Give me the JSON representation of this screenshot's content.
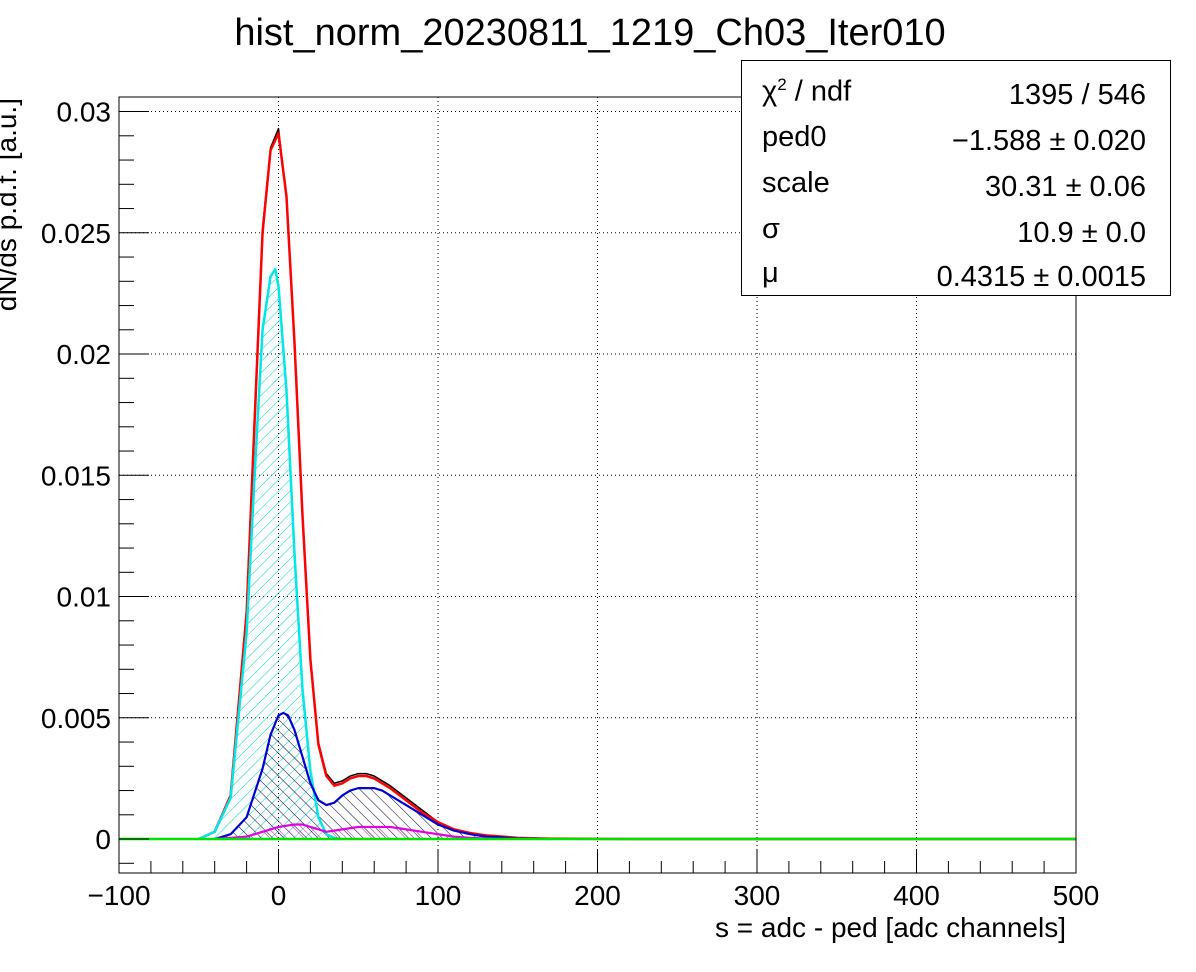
{
  "title": "hist_norm_20230811_1219_Ch03_Iter010",
  "stats_box": {
    "rows": [
      {
        "label_main": "χ",
        "label_sup": "2",
        "label_rest": " / ndf",
        "value": "1395 / 546"
      },
      {
        "label_main": "ped0",
        "label_sup": "",
        "label_rest": "",
        "value": "−1.588 ± 0.020"
      },
      {
        "label_main": "scale",
        "label_sup": "",
        "label_rest": "",
        "value": "30.31 ± 0.06"
      },
      {
        "label_main": "σ",
        "label_sup": "",
        "label_rest": "",
        "value": "10.9 ± 0.0"
      },
      {
        "label_main": "μ",
        "label_sup": "",
        "label_rest": "",
        "value": "0.4315 ± 0.0015"
      }
    ]
  },
  "chart_data": {
    "type": "line",
    "title": "hist_norm_20230811_1219_Ch03_Iter010",
    "xlabel": "s = adc - ped [adc channels]",
    "ylabel": "dN/ds p.d.f. [a.u.]",
    "xlim": [
      -100,
      500
    ],
    "ylim": [
      -0.0014,
      0.0306
    ],
    "xticks": [
      -100,
      0,
      100,
      200,
      300,
      400,
      500
    ],
    "xtick_labels": [
      "−100",
      "0",
      "100",
      "200",
      "300",
      "400",
      "500"
    ],
    "yticks": [
      0,
      0.005,
      0.01,
      0.015,
      0.02,
      0.025,
      0.03
    ],
    "ytick_labels": [
      "0",
      "0.005",
      "0.01",
      "0.015",
      "0.02",
      "0.025",
      "0.03"
    ],
    "grid": true,
    "series": [
      {
        "color": "#000000",
        "x": [
          -50,
          -40,
          -30,
          -20,
          -15,
          -10,
          -5,
          0,
          5,
          10,
          15,
          20,
          25,
          30,
          35,
          40,
          45,
          50,
          55,
          60,
          65,
          70,
          80,
          90,
          100,
          110,
          120,
          130,
          150,
          170,
          200
        ],
        "y": [
          0,
          0.0003,
          0.0018,
          0.0095,
          0.0175,
          0.0252,
          0.0285,
          0.0293,
          0.0265,
          0.0205,
          0.0135,
          0.0075,
          0.004,
          0.0027,
          0.0023,
          0.0024,
          0.0026,
          0.0027,
          0.0027,
          0.0026,
          0.0024,
          0.0022,
          0.0017,
          0.0012,
          0.0007,
          0.0004,
          0.00025,
          0.00015,
          5e-05,
          2e-05,
          5e-06
        ]
      },
      {
        "color": "#ff0000",
        "x": [
          -50,
          -40,
          -30,
          -20,
          -15,
          -10,
          -5,
          0,
          5,
          10,
          15,
          20,
          25,
          30,
          35,
          40,
          45,
          50,
          55,
          60,
          65,
          70,
          80,
          90,
          100,
          110,
          120,
          130,
          150,
          170,
          200,
          500
        ],
        "y": [
          0,
          0.0003,
          0.0018,
          0.0093,
          0.0172,
          0.025,
          0.0284,
          0.0291,
          0.0265,
          0.0205,
          0.0134,
          0.0074,
          0.0039,
          0.0026,
          0.0022,
          0.0023,
          0.0025,
          0.0026,
          0.0026,
          0.0025,
          0.0023,
          0.0021,
          0.0016,
          0.0011,
          0.0007,
          0.0004,
          0.00025,
          0.00015,
          5e-05,
          2e-05,
          5e-06,
          0
        ]
      },
      {
        "color": "#00e5e5",
        "x": [
          -50,
          -40,
          -30,
          -20,
          -15,
          -10,
          -5,
          -2,
          0,
          5,
          10,
          15,
          20,
          25,
          30,
          35,
          40
        ],
        "y": [
          0,
          0.0003,
          0.0017,
          0.0085,
          0.015,
          0.021,
          0.0232,
          0.0235,
          0.0228,
          0.0185,
          0.0118,
          0.0062,
          0.0028,
          0.0009,
          0.0002,
          5e-05,
          0
        ]
      },
      {
        "color": "#0000d0",
        "x": [
          -40,
          -30,
          -20,
          -10,
          -5,
          0,
          3,
          6,
          10,
          15,
          20,
          25,
          30,
          35,
          40,
          45,
          50,
          55,
          60,
          65,
          70,
          80,
          90,
          100,
          110,
          120,
          130,
          150,
          170
        ],
        "y": [
          0,
          0.0002,
          0.0009,
          0.0029,
          0.0043,
          0.0051,
          0.0052,
          0.0051,
          0.0045,
          0.0034,
          0.0023,
          0.0016,
          0.0014,
          0.0015,
          0.0018,
          0.002,
          0.0021,
          0.0021,
          0.0021,
          0.002,
          0.0018,
          0.0014,
          0.001,
          0.0006,
          0.00035,
          0.0002,
          0.0001,
          3e-05,
          0
        ]
      },
      {
        "color": "#e000e0",
        "x": [
          -40,
          -20,
          -10,
          0,
          10,
          15,
          20,
          25,
          30,
          40,
          50,
          60,
          70,
          80,
          90,
          100,
          110,
          120,
          140
        ],
        "y": [
          0,
          0.0001,
          0.0003,
          0.0005,
          0.0006,
          0.0006,
          0.0005,
          0.0004,
          0.0003,
          0.0004,
          0.0005,
          0.0005,
          0.0005,
          0.0004,
          0.0003,
          0.0002,
          0.0001,
          5e-05,
          0
        ]
      },
      {
        "color": "#00e000",
        "x": [
          -100,
          200,
          500
        ],
        "y": [
          0,
          0,
          0
        ]
      }
    ]
  }
}
